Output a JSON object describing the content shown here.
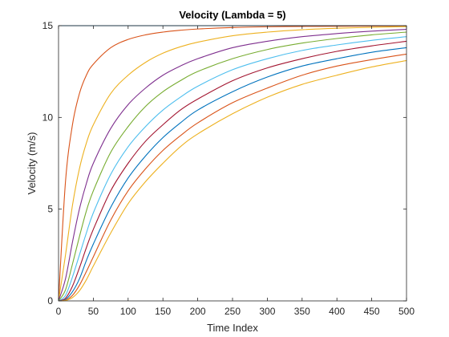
{
  "chart_data": {
    "type": "line",
    "title": "Velocity (Lambda = 5)",
    "xlabel": "Time Index",
    "ylabel": "Velocity (m/s)",
    "xlim": [
      0,
      500
    ],
    "ylim": [
      0,
      15
    ],
    "xticks": [
      0,
      50,
      100,
      150,
      200,
      250,
      300,
      350,
      400,
      450,
      500
    ],
    "yticks": [
      0,
      5,
      10,
      15
    ],
    "grid": false,
    "legend": "none",
    "x": [
      0,
      10,
      20,
      30,
      40,
      50,
      75,
      100,
      125,
      150,
      175,
      200,
      250,
      300,
      350,
      400,
      450,
      500
    ],
    "series": [
      {
        "color": "#0072BD",
        "values": [
          15,
          15,
          15,
          15,
          15,
          15,
          15,
          15,
          15,
          15,
          15,
          15,
          15,
          15,
          15,
          15,
          15,
          15
        ]
      },
      {
        "color": "#D95319",
        "values": [
          0,
          6.5,
          9.6,
          11.3,
          12.3,
          12.9,
          13.8,
          14.25,
          14.5,
          14.65,
          14.75,
          14.82,
          14.9,
          14.94,
          14.96,
          14.97,
          14.98,
          14.99
        ]
      },
      {
        "color": "#EDB120",
        "values": [
          0,
          2.5,
          5.2,
          7.2,
          8.6,
          9.6,
          11.3,
          12.3,
          13.0,
          13.5,
          13.85,
          14.1,
          14.45,
          14.65,
          14.78,
          14.86,
          14.91,
          14.95
        ]
      },
      {
        "color": "#7E2F8E",
        "values": [
          0,
          1.2,
          3.2,
          5.0,
          6.4,
          7.5,
          9.4,
          10.7,
          11.6,
          12.3,
          12.8,
          13.2,
          13.8,
          14.15,
          14.4,
          14.57,
          14.7,
          14.8
        ]
      },
      {
        "color": "#77AC30",
        "values": [
          0,
          0.6,
          2.0,
          3.5,
          4.9,
          6.0,
          8.1,
          9.5,
          10.6,
          11.4,
          12.0,
          12.5,
          13.2,
          13.7,
          14.05,
          14.3,
          14.5,
          14.65
        ]
      },
      {
        "color": "#4DBEEE",
        "values": [
          0,
          0.3,
          1.3,
          2.5,
          3.7,
          4.8,
          6.9,
          8.4,
          9.5,
          10.4,
          11.1,
          11.7,
          12.6,
          13.2,
          13.65,
          13.95,
          14.2,
          14.4
        ]
      },
      {
        "color": "#A2142F",
        "values": [
          0,
          0.15,
          0.8,
          1.8,
          2.9,
          3.9,
          6.0,
          7.5,
          8.7,
          9.6,
          10.4,
          11.0,
          12.0,
          12.7,
          13.2,
          13.6,
          13.9,
          14.15
        ]
      },
      {
        "color": "#0072BD",
        "values": [
          0,
          0.08,
          0.5,
          1.2,
          2.2,
          3.1,
          5.1,
          6.7,
          7.9,
          8.9,
          9.7,
          10.4,
          11.4,
          12.2,
          12.8,
          13.2,
          13.55,
          13.8
        ]
      },
      {
        "color": "#D95319",
        "values": [
          0,
          0.04,
          0.3,
          0.85,
          1.6,
          2.4,
          4.4,
          6.0,
          7.2,
          8.2,
          9.0,
          9.7,
          10.8,
          11.6,
          12.3,
          12.8,
          13.15,
          13.45
        ]
      },
      {
        "color": "#EDB120",
        "values": [
          0,
          0.02,
          0.18,
          0.55,
          1.15,
          1.9,
          3.7,
          5.3,
          6.5,
          7.5,
          8.4,
          9.1,
          10.2,
          11.1,
          11.8,
          12.3,
          12.75,
          13.1
        ]
      }
    ]
  }
}
